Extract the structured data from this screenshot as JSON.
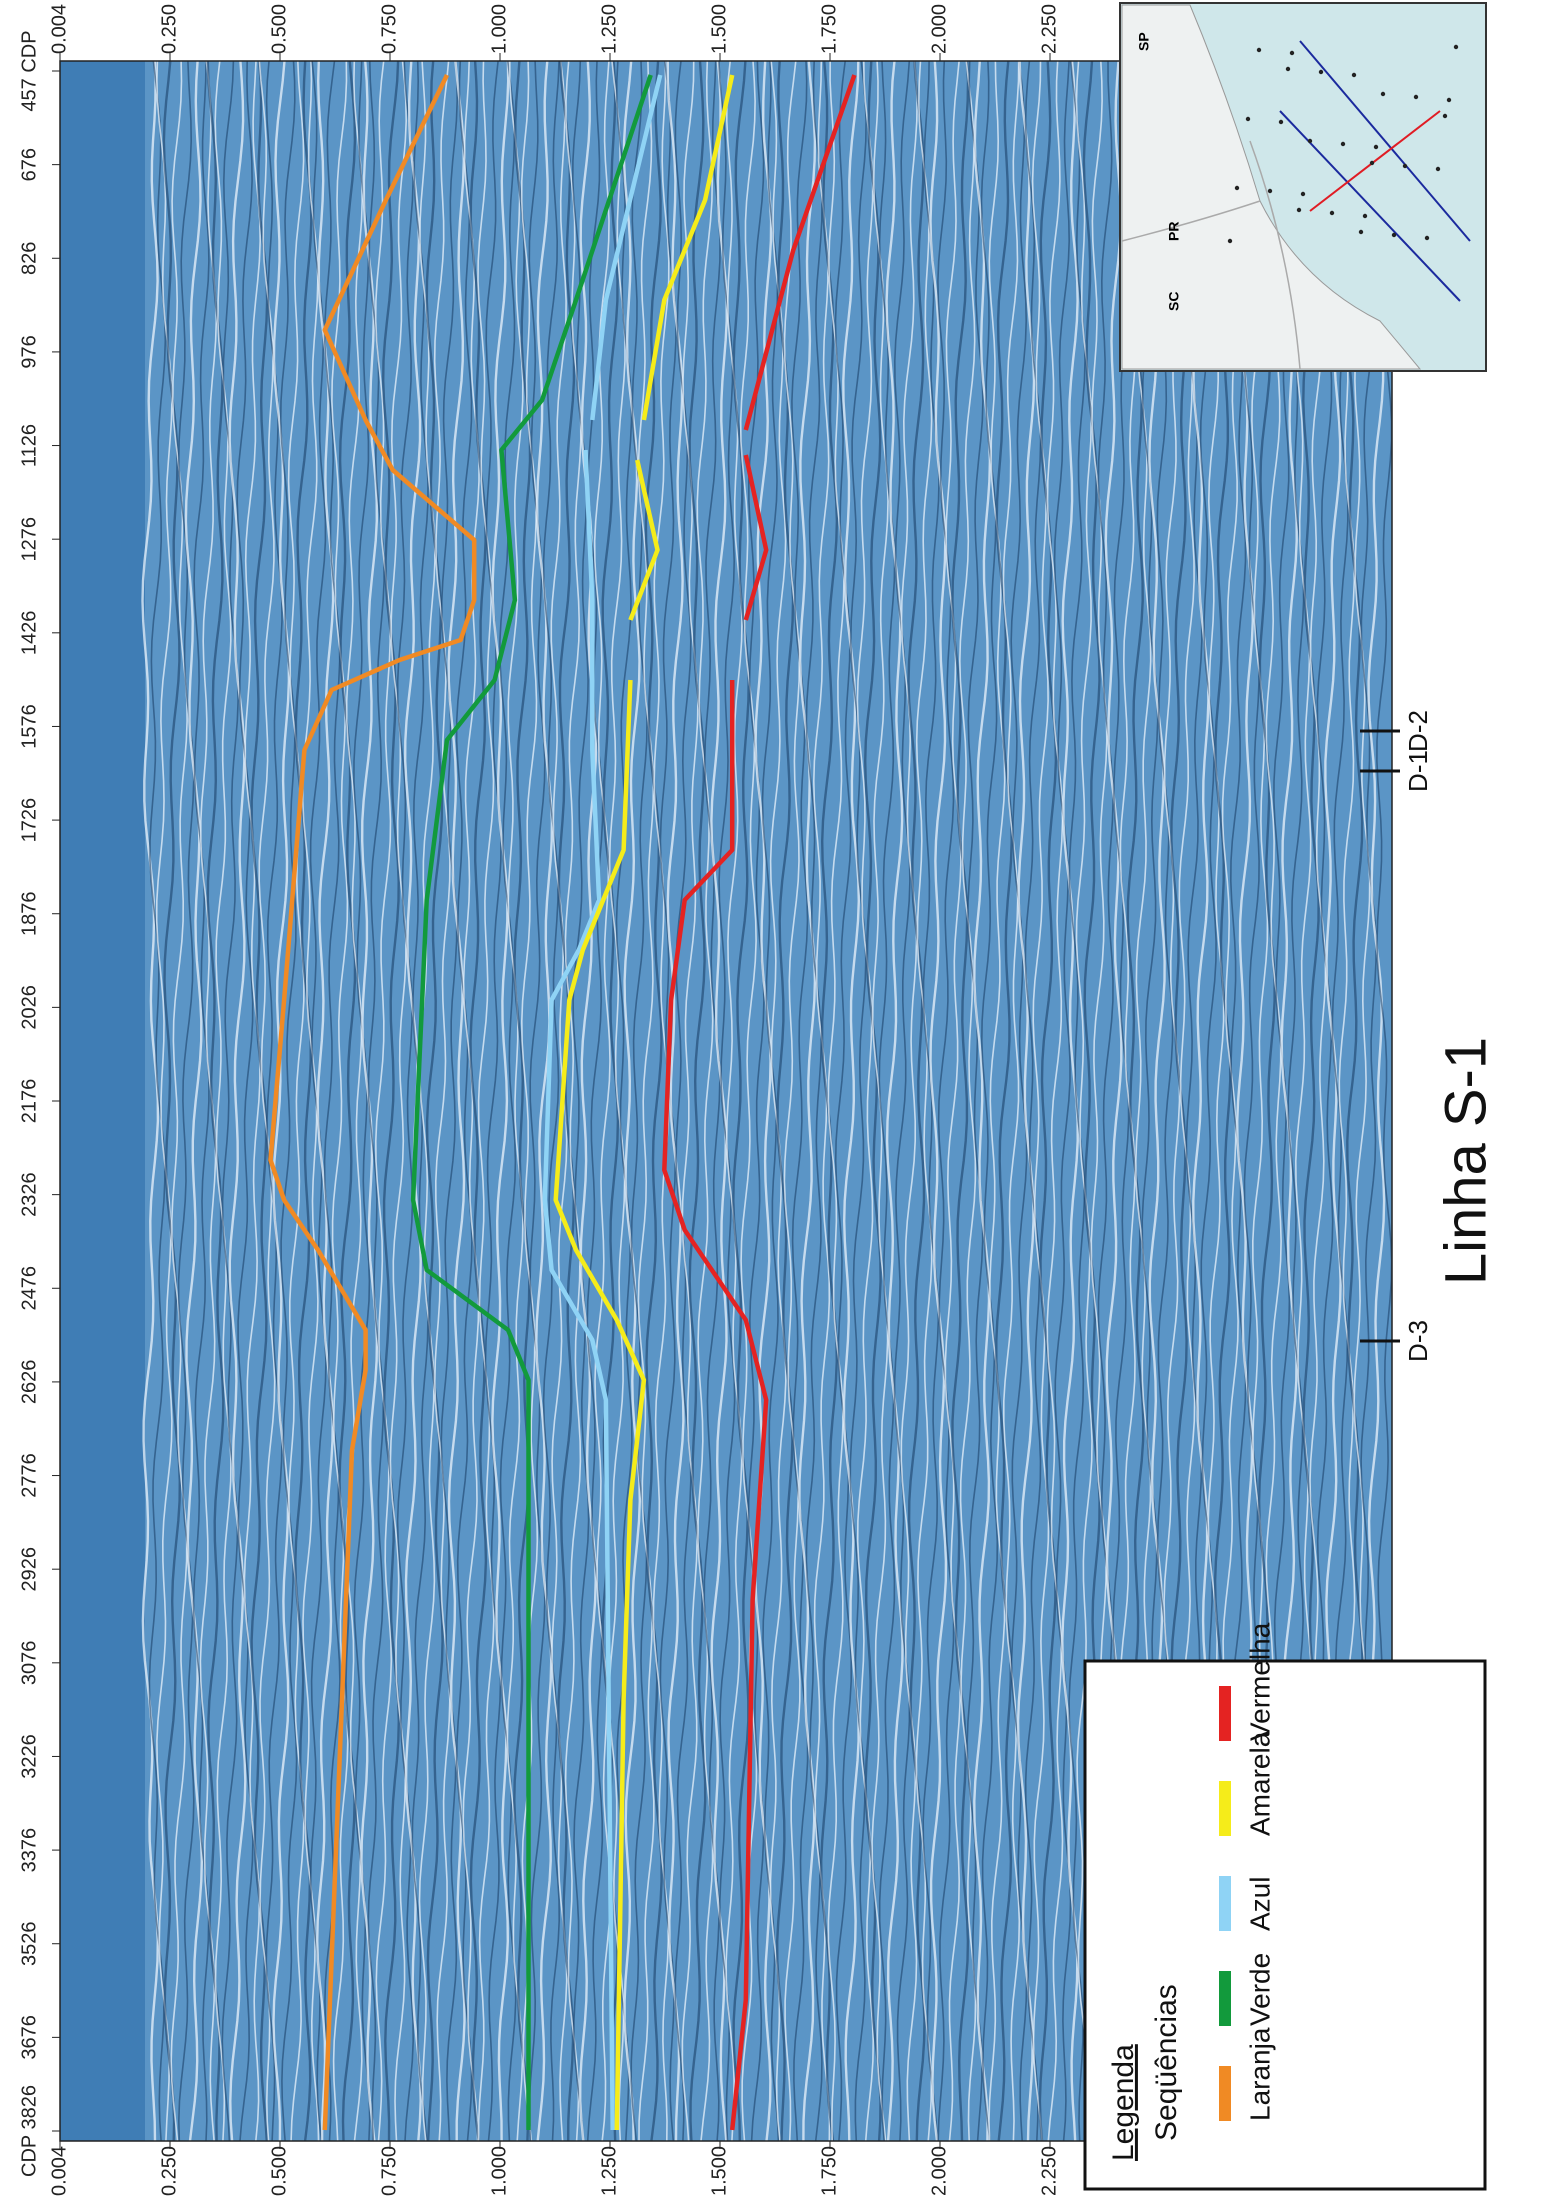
{
  "cdp_axis": {
    "labels": [
      "457 CDP",
      "676",
      "826",
      "976",
      "1126",
      "1276",
      "1426",
      "1576",
      "1726",
      "1876",
      "2026",
      "2176",
      "2326",
      "2476",
      "2626",
      "2776",
      "2926",
      "3076",
      "3226",
      "3376",
      "3526",
      "3676",
      "CDP 3826"
    ]
  },
  "time_axis": {
    "labels": [
      "0.004",
      "0.250",
      "0.500",
      "0.750",
      "1.000",
      "1.250",
      "1.500",
      "1.750",
      "2.000",
      "2.250"
    ]
  },
  "title": "Linha S-1",
  "wells": [
    "D-1",
    "D-2",
    "D-3"
  ],
  "legend": {
    "title": "Legenda",
    "subtitle": "Seqüências",
    "items": [
      "Laranja",
      "Verde",
      "Azul",
      "Amarela",
      "Vermelha"
    ]
  },
  "map": {
    "labels": [
      "SP",
      "PR",
      "SC"
    ]
  }
}
